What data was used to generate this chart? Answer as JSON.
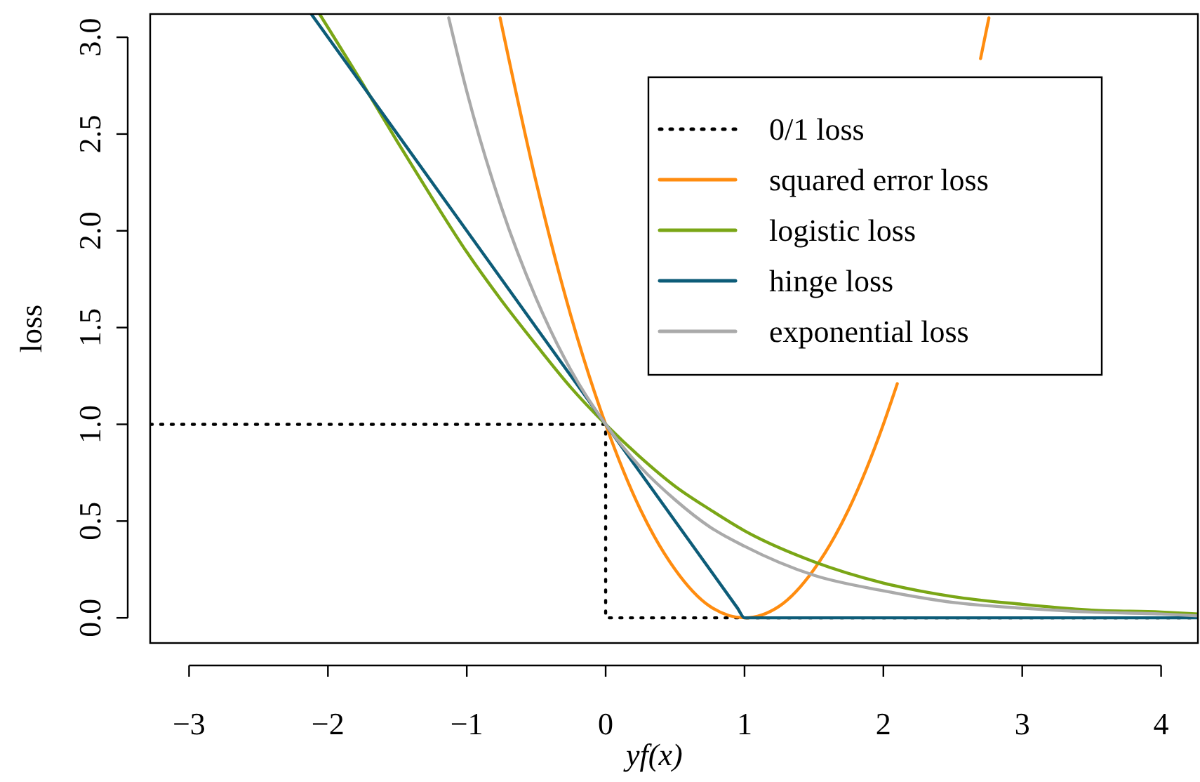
{
  "chart_data": {
    "type": "line",
    "xlabel": "yf(x)",
    "ylabel": "loss",
    "xlim": [
      -3.28,
      4.27
    ],
    "ylim": [
      -0.13,
      3.12
    ],
    "xticks": [
      {
        "value": -3,
        "label": "−3"
      },
      {
        "value": -2,
        "label": "−2"
      },
      {
        "value": -1,
        "label": "−1"
      },
      0,
      1,
      2,
      3,
      4
    ],
    "yticks": [
      {
        "value": 0,
        "label": "0.0"
      },
      {
        "value": 0.5,
        "label": "0.5"
      },
      {
        "value": 1,
        "label": "1.0"
      },
      {
        "value": 1.5,
        "label": "1.5"
      },
      {
        "value": 2,
        "label": "2.0"
      },
      {
        "value": 2.5,
        "label": "2.5"
      },
      {
        "value": 3,
        "label": "3.0"
      }
    ],
    "grid": false,
    "legend": "top right",
    "series": [
      {
        "name": "0/1 loss",
        "type": "step",
        "line_style": "dotted",
        "color": "#000000",
        "x": [
          -3.28,
          0,
          4.27
        ],
        "values": [
          1,
          0,
          0
        ]
      },
      {
        "name": "squared error loss",
        "color": "#ff8c0f",
        "x": [
          -0.76,
          -0.5,
          -0.25,
          0,
          0.25,
          0.5,
          0.75,
          1,
          1.25,
          1.5,
          1.75,
          2,
          2.1,
          2.25,
          2.5,
          2.7,
          2.76
        ],
        "values": [
          3.1,
          2.25,
          1.56,
          1,
          0.56,
          0.25,
          0.06,
          0,
          0.06,
          0.25,
          0.56,
          1,
          1.21,
          null,
          null,
          2.89,
          3.1
        ]
      },
      {
        "name": "logistic loss",
        "color": "#7aa616",
        "x": [
          -2.06,
          -1.75,
          -1.5,
          -1.25,
          -1,
          -0.75,
          -0.5,
          -0.25,
          0,
          0.25,
          0.5,
          0.75,
          1,
          1.5,
          2,
          2.5,
          3,
          3.5,
          4,
          4.27
        ],
        "values": [
          3.12,
          2.76,
          2.46,
          2.17,
          1.89,
          1.64,
          1.41,
          1.19,
          1,
          0.83,
          0.68,
          0.56,
          0.45,
          0.29,
          0.18,
          0.11,
          0.07,
          0.04,
          0.03,
          0.02
        ]
      },
      {
        "name": "hinge loss",
        "color": "#0d5c78",
        "x": [
          -2.12,
          -1,
          0,
          0.95,
          1,
          1.05,
          4.27
        ],
        "values": [
          3.12,
          2,
          1,
          0.05,
          0,
          0,
          0
        ]
      },
      {
        "name": "exponential loss",
        "color": "#aaaaaa",
        "x": [
          -1.13,
          -1,
          -0.75,
          -0.5,
          -0.25,
          0,
          0.25,
          0.5,
          0.75,
          1,
          1.5,
          2,
          2.5,
          3,
          3.5,
          4,
          4.27
        ],
        "values": [
          3.1,
          2.72,
          2.12,
          1.65,
          1.28,
          1,
          0.78,
          0.61,
          0.47,
          0.37,
          0.22,
          0.14,
          0.08,
          0.05,
          0.03,
          0.02,
          0.01
        ]
      }
    ]
  }
}
